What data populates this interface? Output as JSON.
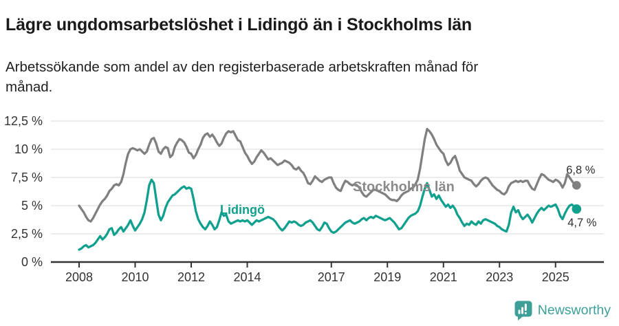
{
  "header": {
    "title": "Lägre ungdomsarbetslöshet i Lidingö än i Stockholms län",
    "subtitle_line1": "Arbetssökande som andel av den registerbaserade arbetskraften månad för",
    "subtitle_line2": "månad."
  },
  "footer": {
    "brand": "Newsworthy",
    "logo_icon": "speech-bubble-bar-chart-icon"
  },
  "colors": {
    "title_text": "#1a1a1a",
    "lidingo_teal": "#10a08d",
    "stockholm_gray": "#808080",
    "series_label_gray": "#8a8a8a",
    "axis_text": "#333333",
    "gridline": "#d9d9d9",
    "axis_line": "#333333",
    "end_label_text": "#2e2e2e",
    "brand_teal": "#3d9f97"
  },
  "chart_data": {
    "type": "line",
    "unit": "%",
    "x_start_year": 2008,
    "x_interval": "monthly",
    "x_end_label": "Oct 2025",
    "x_tick_labels": [
      "2008",
      "2010",
      "2012",
      "2014",
      "2017",
      "2019",
      "2021",
      "2023",
      "2025"
    ],
    "x_tick_values": [
      2008,
      2010,
      2012,
      2014,
      2017,
      2019,
      2021,
      2023,
      2025
    ],
    "y_tick_labels": [
      "0 %",
      "2,5 %",
      "5 %",
      "7,5 %",
      "10 %",
      "12,5 %"
    ],
    "y_tick_values": [
      0,
      2.5,
      5,
      7.5,
      10,
      12.5
    ],
    "ylim": [
      0,
      12.5
    ],
    "grid": "horizontal",
    "legend_position": "inline-labels",
    "series": [
      {
        "name": "Stockholms län",
        "color": "#808080",
        "end_label": "6,8 %",
        "end_value": 6.8,
        "values": [
          5.0,
          4.7,
          4.4,
          4.0,
          3.7,
          3.6,
          3.9,
          4.3,
          4.7,
          5.1,
          5.4,
          5.6,
          5.9,
          6.3,
          6.5,
          6.8,
          6.9,
          6.8,
          7.1,
          7.8,
          8.8,
          9.6,
          10.0,
          10.1,
          10.0,
          9.9,
          10.0,
          9.8,
          9.6,
          9.8,
          10.4,
          10.9,
          11.0,
          10.5,
          9.8,
          9.6,
          10.0,
          10.2,
          10.1,
          9.3,
          9.5,
          10.2,
          10.6,
          10.9,
          10.8,
          10.6,
          10.2,
          9.7,
          9.6,
          9.2,
          9.5,
          10.0,
          10.4,
          11.0,
          11.3,
          11.4,
          11.1,
          11.3,
          11.0,
          10.6,
          10.3,
          10.5,
          11.0,
          11.4,
          11.6,
          11.5,
          11.6,
          11.2,
          10.8,
          10.7,
          10.2,
          9.7,
          9.4,
          9.0,
          8.7,
          8.9,
          9.3,
          9.6,
          9.9,
          9.7,
          9.4,
          9.1,
          9.2,
          9.0,
          8.8,
          8.6,
          8.7,
          8.8,
          9.0,
          8.9,
          8.8,
          8.6,
          8.3,
          8.2,
          8.4,
          8.1,
          7.9,
          7.5,
          7.0,
          6.9,
          7.2,
          7.6,
          7.4,
          7.2,
          7.1,
          7.3,
          7.4,
          7.5,
          7.5,
          7.0,
          6.6,
          6.4,
          6.3,
          6.8,
          7.2,
          7.1,
          6.9,
          6.8,
          6.9,
          6.8,
          6.6,
          6.2,
          5.9,
          5.8,
          6.0,
          6.2,
          6.4,
          6.4,
          6.3,
          6.2,
          6.1,
          6.0,
          5.8,
          5.6,
          5.5,
          5.5,
          5.4,
          5.6,
          5.9,
          6.1,
          6.2,
          6.3,
          6.5,
          6.6,
          6.9,
          7.3,
          8.3,
          9.6,
          10.9,
          11.8,
          11.6,
          11.3,
          10.9,
          10.4,
          10.1,
          9.8,
          9.6,
          9.0,
          8.6,
          8.8,
          9.2,
          9.4,
          8.8,
          8.1,
          7.8,
          7.5,
          7.4,
          7.3,
          7.2,
          6.9,
          6.7,
          6.9,
          7.2,
          7.4,
          7.5,
          7.4,
          7.1,
          6.8,
          6.6,
          6.4,
          6.3,
          6.1,
          6.0,
          6.2,
          6.7,
          7.0,
          7.1,
          7.2,
          7.1,
          7.2,
          7.1,
          7.2,
          7.2,
          6.8,
          6.5,
          6.4,
          6.9,
          7.4,
          7.8,
          7.7,
          7.5,
          7.3,
          7.2,
          7.1,
          7.3,
          7.2,
          7.0,
          6.6,
          7.0,
          7.8,
          7.5,
          7.2,
          6.9,
          6.8
        ]
      },
      {
        "name": "Lidingö",
        "color": "#10a08d",
        "end_label": "4,7 %",
        "end_value": 4.7,
        "values": [
          1.1,
          1.2,
          1.4,
          1.5,
          1.3,
          1.4,
          1.5,
          1.7,
          2.0,
          2.3,
          2.0,
          2.2,
          2.5,
          2.9,
          3.0,
          2.4,
          2.6,
          2.9,
          3.1,
          2.7,
          3.0,
          3.3,
          3.7,
          3.2,
          2.8,
          3.1,
          3.4,
          3.8,
          4.4,
          5.5,
          6.8,
          7.3,
          7.0,
          5.6,
          4.2,
          3.7,
          4.1,
          4.8,
          5.3,
          5.6,
          5.9,
          6.0,
          6.2,
          6.4,
          6.6,
          6.7,
          6.5,
          6.6,
          6.5,
          5.6,
          4.5,
          3.8,
          3.4,
          3.1,
          2.9,
          3.2,
          3.6,
          3.3,
          2.9,
          3.1,
          3.7,
          4.4,
          4.1,
          4.2,
          3.6,
          3.4,
          3.5,
          3.6,
          3.7,
          3.6,
          3.7,
          3.6,
          3.7,
          3.5,
          3.3,
          3.5,
          3.7,
          3.6,
          3.7,
          3.8,
          3.9,
          4.0,
          3.9,
          3.8,
          3.6,
          3.3,
          3.0,
          2.8,
          3.0,
          3.3,
          3.6,
          3.5,
          3.6,
          3.5,
          3.3,
          3.2,
          3.3,
          3.5,
          3.6,
          3.7,
          3.5,
          3.2,
          2.9,
          2.8,
          3.1,
          3.5,
          3.4,
          3.0,
          2.7,
          2.6,
          2.7,
          2.9,
          3.1,
          3.3,
          3.5,
          3.6,
          3.7,
          3.5,
          3.4,
          3.5,
          3.6,
          3.8,
          3.9,
          3.7,
          3.9,
          4.0,
          3.9,
          4.1,
          4.0,
          3.9,
          3.8,
          3.7,
          3.8,
          3.9,
          3.7,
          3.5,
          3.2,
          2.9,
          3.0,
          3.3,
          3.6,
          3.9,
          4.1,
          4.2,
          4.3,
          4.5,
          5.0,
          5.8,
          6.5,
          7.0,
          6.4,
          5.8,
          6.0,
          5.6,
          5.9,
          5.5,
          5.2,
          4.9,
          5.1,
          4.8,
          5.0,
          4.7,
          4.2,
          3.9,
          3.5,
          3.2,
          3.4,
          3.3,
          3.6,
          3.4,
          3.3,
          3.6,
          3.4,
          3.7,
          3.8,
          3.7,
          3.6,
          3.5,
          3.4,
          3.2,
          3.1,
          2.9,
          2.8,
          2.7,
          3.3,
          4.4,
          4.9,
          4.4,
          4.6,
          4.1,
          3.8,
          4.0,
          4.2,
          3.9,
          3.5,
          3.9,
          4.3,
          4.6,
          4.8,
          4.6,
          4.8,
          5.0,
          4.9,
          5.0,
          5.1,
          4.7,
          4.1,
          3.8,
          4.3,
          4.7,
          5.0,
          5.1,
          4.9,
          4.7
        ]
      }
    ]
  }
}
